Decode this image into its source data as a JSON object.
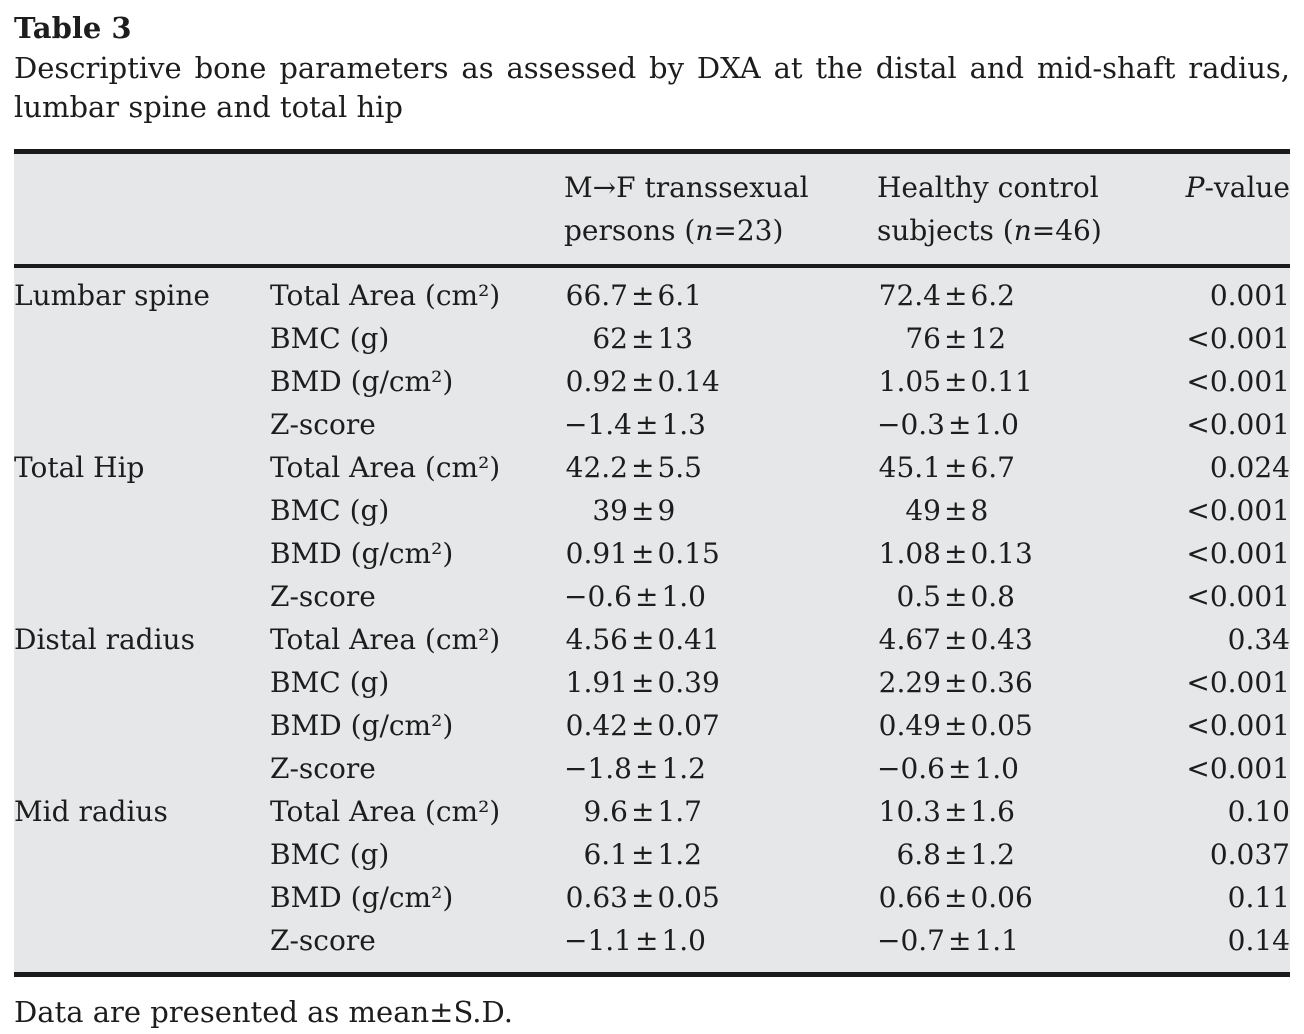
{
  "title": "Table 3",
  "caption_line1": "Descriptive bone parameters as assessed by DXA at the distal and mid-shaft radius,",
  "caption_line2": "lumbar spine and total hip",
  "sym": {
    "pm": "±"
  },
  "colors": {
    "table_shading": "#e6e7e8",
    "rule_color": "#1b1b1b",
    "text_color": "#1d1d1d"
  },
  "headers": {
    "mf": {
      "line1": "M→F transsexual",
      "line2_pre": "persons (",
      "n": "n",
      "line2_post": "=23)"
    },
    "hc": {
      "line1": "Healthy control",
      "line2_pre": "subjects (",
      "n": "n",
      "line2_post": "=46)"
    },
    "p": {
      "italic": "P",
      "rest": "-value"
    }
  },
  "rows": [
    {
      "group": "Lumbar spine",
      "param": "Total Area (cm²)",
      "mf_mean": "66.7",
      "mf_sd": "6.1",
      "hc_mean": "72.4",
      "hc_sd": "6.2",
      "p": "0.001"
    },
    {
      "group": "",
      "param": "BMC (g)",
      "mf_mean": "62",
      "mf_sd": "13",
      "hc_mean": "76",
      "hc_sd": "12",
      "p": "<0.001"
    },
    {
      "group": "",
      "param": "BMD (g/cm²)",
      "mf_mean": "0.92",
      "mf_sd": "0.14",
      "hc_mean": "1.05",
      "hc_sd": "0.11",
      "p": "<0.001"
    },
    {
      "group": "",
      "param": "Z-score",
      "mf_mean": "−1.4",
      "mf_sd": "1.3",
      "hc_mean": "−0.3",
      "hc_sd": "1.0",
      "p": "<0.001"
    },
    {
      "group": "Total Hip",
      "param": "Total Area (cm²)",
      "mf_mean": "42.2",
      "mf_sd": "5.5",
      "hc_mean": "45.1",
      "hc_sd": "6.7",
      "p": "0.024"
    },
    {
      "group": "",
      "param": "BMC (g)",
      "mf_mean": "39",
      "mf_sd": "9",
      "hc_mean": "49",
      "hc_sd": "8",
      "p": "<0.001"
    },
    {
      "group": "",
      "param": "BMD (g/cm²)",
      "mf_mean": "0.91",
      "mf_sd": "0.15",
      "hc_mean": "1.08",
      "hc_sd": "0.13",
      "p": "<0.001"
    },
    {
      "group": "",
      "param": "Z-score",
      "mf_mean": "−0.6",
      "mf_sd": "1.0",
      "hc_mean": "0.5",
      "hc_sd": "0.8",
      "p": "<0.001"
    },
    {
      "group": "Distal radius",
      "param": "Total Area (cm²)",
      "mf_mean": "4.56",
      "mf_sd": "0.41",
      "hc_mean": "4.67",
      "hc_sd": "0.43",
      "p": "0.34"
    },
    {
      "group": "",
      "param": "BMC (g)",
      "mf_mean": "1.91",
      "mf_sd": "0.39",
      "hc_mean": "2.29",
      "hc_sd": "0.36",
      "p": "<0.001"
    },
    {
      "group": "",
      "param": "BMD (g/cm²)",
      "mf_mean": "0.42",
      "mf_sd": "0.07",
      "hc_mean": "0.49",
      "hc_sd": "0.05",
      "p": "<0.001"
    },
    {
      "group": "",
      "param": "Z-score",
      "mf_mean": "−1.8",
      "mf_sd": "1.2",
      "hc_mean": "−0.6",
      "hc_sd": "1.0",
      "p": "<0.001"
    },
    {
      "group": "Mid radius",
      "param": "Total Area (cm²)",
      "mf_mean": "9.6",
      "mf_sd": "1.7",
      "hc_mean": "10.3",
      "hc_sd": "1.6",
      "p": "0.10"
    },
    {
      "group": "",
      "param": "BMC (g)",
      "mf_mean": "6.1",
      "mf_sd": "1.2",
      "hc_mean": "6.8",
      "hc_sd": "1.2",
      "p": "0.037"
    },
    {
      "group": "",
      "param": "BMD (g/cm²)",
      "mf_mean": "0.63",
      "mf_sd": "0.05",
      "hc_mean": "0.66",
      "hc_sd": "0.06",
      "p": "0.11"
    },
    {
      "group": "",
      "param": "Z-score",
      "mf_mean": "−1.1",
      "mf_sd": "1.0",
      "hc_mean": "−0.7",
      "hc_sd": "1.1",
      "p": "0.14"
    }
  ],
  "footnote": "Data are presented as mean±S.D."
}
